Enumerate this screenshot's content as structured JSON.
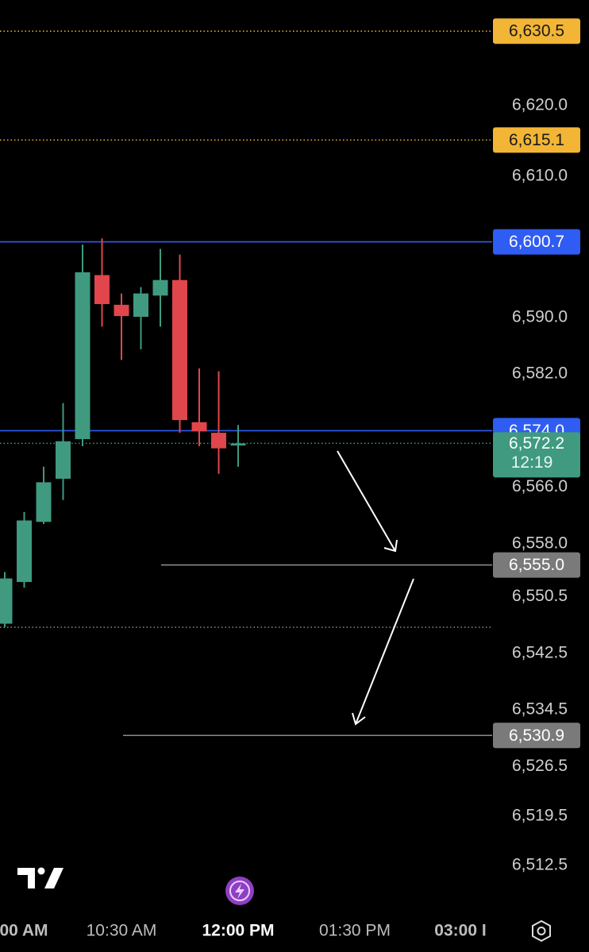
{
  "chart_data": {
    "type": "candlestick",
    "categories": [
      "00 AM",
      null,
      null,
      null,
      null,
      null,
      "10:30 AM",
      null,
      null,
      null,
      null,
      null,
      "12:00 PM",
      null,
      null,
      null,
      null,
      null,
      "01:30 PM",
      null,
      null,
      null,
      null,
      null,
      "03:00 I"
    ],
    "highlight_category": 12,
    "open": [
      6546.7,
      6552.6,
      6561.1,
      6567.2,
      6572.8,
      6596.0,
      6591.8,
      6590.1,
      6593.1,
      6595.3,
      6575.2,
      6573.7,
      6571.9,
      null,
      null,
      null,
      null,
      null,
      null,
      null,
      null,
      null,
      null,
      null,
      null
    ],
    "high": [
      6554.0,
      6562.5,
      6568.9,
      6577.9,
      6600.3,
      6601.2,
      6593.4,
      6594.3,
      6599.7,
      6598.9,
      6582.8,
      6582.4,
      6574.8,
      null,
      null,
      null,
      null,
      null,
      null,
      null,
      null,
      null,
      null,
      null,
      null
    ],
    "low": [
      6546.2,
      6551.8,
      6560.8,
      6564.2,
      6571.8,
      6588.7,
      6584.0,
      6585.5,
      6588.7,
      6573.7,
      6571.8,
      6567.9,
      6568.9,
      null,
      null,
      null,
      null,
      null,
      null,
      null,
      null,
      null,
      null,
      null,
      null
    ],
    "close": [
      6553.1,
      6561.3,
      6566.7,
      6572.5,
      6596.4,
      6591.9,
      6590.2,
      6593.4,
      6595.3,
      6575.5,
      6573.9,
      6571.5,
      6572.2,
      null,
      null,
      null,
      null,
      null,
      null,
      null,
      null,
      null,
      null,
      null,
      null
    ],
    "up_color": "#3f9a80",
    "down_color": "#e0464b",
    "ylim": [
      6506.9,
      6634.9
    ],
    "yticks": [
      {
        "value": 6620.0,
        "label": "6,620.0"
      },
      {
        "value": 6610.0,
        "label": "6,610.0"
      },
      {
        "value": 6590.0,
        "label": "6,590.0"
      },
      {
        "value": 6582.0,
        "label": "6,582.0"
      },
      {
        "value": 6566.0,
        "label": "6,566.0"
      },
      {
        "value": 6558.0,
        "label": "6,558.0"
      },
      {
        "value": 6550.5,
        "label": "6,550.5"
      },
      {
        "value": 6542.5,
        "label": "6,542.5"
      },
      {
        "value": 6534.5,
        "label": "6,534.5"
      },
      {
        "value": 6526.5,
        "label": "6,526.5"
      },
      {
        "value": 6519.5,
        "label": "6,519.5"
      },
      {
        "value": 6512.5,
        "label": "6,512.5"
      }
    ],
    "levels": [
      {
        "value": 6630.5,
        "label": "6,630.5",
        "color": "#f2b535",
        "style": "dotted"
      },
      {
        "value": 6615.1,
        "label": "6,615.1",
        "color": "#f2b535",
        "style": "dotted"
      },
      {
        "value": 6600.7,
        "label": "6,600.7",
        "color": "#2f5cf2",
        "style": "solid"
      },
      {
        "value": 6574.0,
        "label": "6,574.0",
        "color": "#2f5cf2",
        "style": "solid"
      },
      {
        "value": 6555.0,
        "label": "6,555.0",
        "color": "#8a8a8a",
        "style": "solid"
      },
      {
        "value": 6546.2,
        "color": "#8a8a8a",
        "style": "dotted"
      },
      {
        "value": 6530.9,
        "label": "6,530.9",
        "color": "#8a8a8a",
        "style": "solid"
      }
    ],
    "current_price": {
      "value": 6572.2,
      "label": "6,572.2",
      "countdown": "12:19",
      "color": "#3f9a80"
    }
  }
}
